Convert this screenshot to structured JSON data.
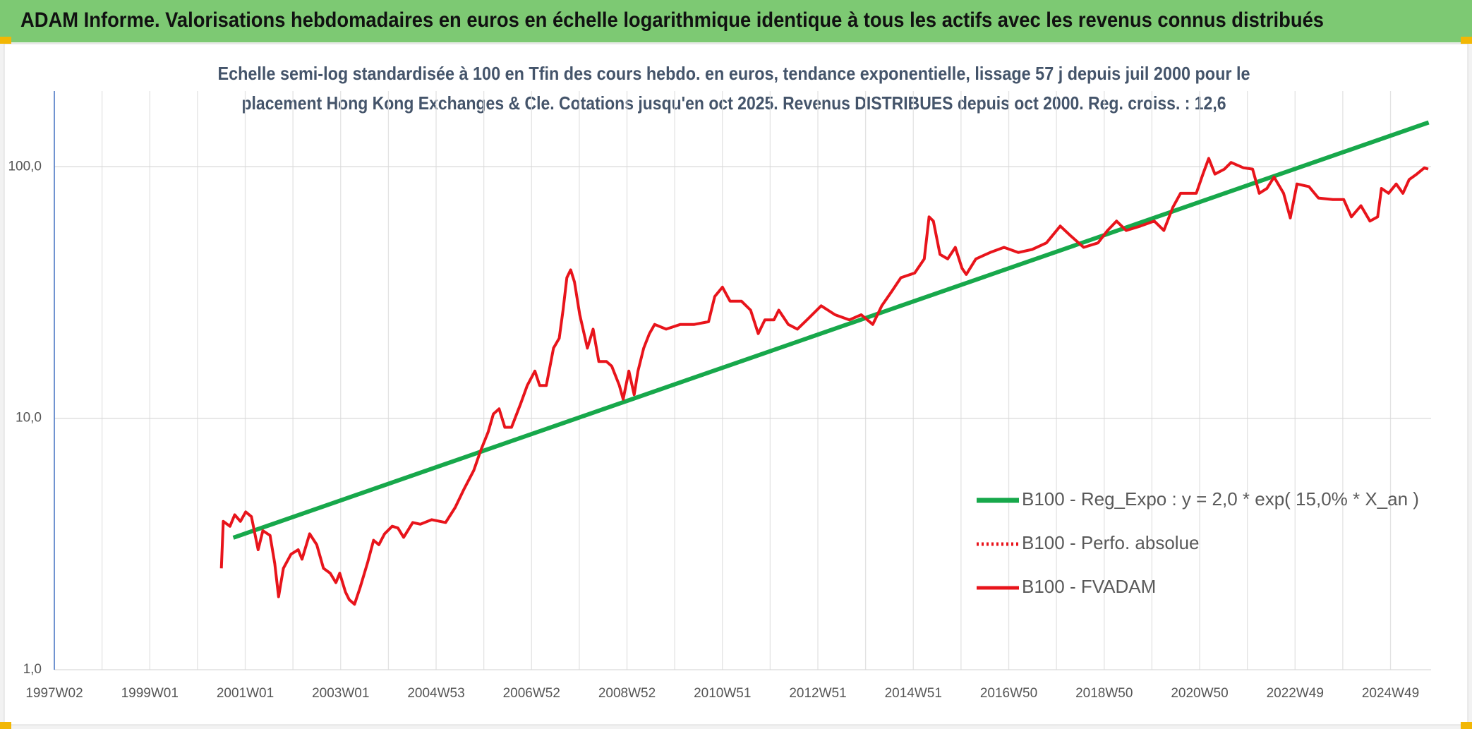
{
  "header": {
    "title": "ADAM Informe. Valorisations hebdomadaires en euros en échelle logarithmique identique à tous les actifs avec les revenus connus distribués"
  },
  "chart_data": {
    "type": "line",
    "subtitle": [
      "Echelle semi-log standardisée à 100 en Tfin des cours hebdo. en euros, tendance exponentielle, lissage 57 j depuis juil 2000 pour le",
      "placement Hong Kong Exchanges & Cle. Cotations jusqu'en oct 2025. Revenus DISTRIBUES depuis oct 2000. Reg. croiss. : 12,6"
    ],
    "log_y": true,
    "grid": true,
    "legend": "right",
    "xlim": [
      1997,
      2025.85
    ],
    "xticks": [
      {
        "value": 1997,
        "label": "1997W02"
      },
      {
        "value": 1999,
        "label": "1999W01"
      },
      {
        "value": 2001,
        "label": "2001W01"
      },
      {
        "value": 2003,
        "label": "2003W01"
      },
      {
        "value": 2005,
        "label": "2004W53"
      },
      {
        "value": 2007,
        "label": "2006W52"
      },
      {
        "value": 2009,
        "label": "2008W52"
      },
      {
        "value": 2011,
        "label": "2010W51"
      },
      {
        "value": 2013,
        "label": "2012W51"
      },
      {
        "value": 2015,
        "label": "2014W51"
      },
      {
        "value": 2017,
        "label": "2016W50"
      },
      {
        "value": 2019,
        "label": "2018W50"
      },
      {
        "value": 2021,
        "label": "2020W50"
      },
      {
        "value": 2023,
        "label": "2022W49"
      },
      {
        "value": 2025,
        "label": "2024W49"
      }
    ],
    "xminor": [
      1998,
      2000,
      2002,
      2004,
      2006,
      2008,
      2010,
      2012,
      2014,
      2016,
      2018,
      2020,
      2022,
      2024
    ],
    "ylim": [
      1,
      200
    ],
    "yticks": [
      {
        "value": 1,
        "label": "1,0"
      },
      {
        "value": 10,
        "label": "10,0"
      },
      {
        "value": 100,
        "label": "100,0"
      }
    ],
    "series": [
      {
        "name": "B100 - Reg_Expo : y = 2,0 * exp( 15,0% *  X_an )",
        "color": "#17a84b",
        "style": "solid",
        "width": 6,
        "x": [
          2000.75,
          2025.8
        ],
        "values": [
          3.35,
          150
        ]
      },
      {
        "name": "B100 - Perfo. absolue",
        "color": "#e8141b",
        "style": "dotted",
        "width": 4,
        "x": [],
        "values": []
      },
      {
        "name": "B100 - FVADAM",
        "color": "#e8141b",
        "style": "solid",
        "width": 4,
        "x": [
          2000.5,
          2000.54,
          2000.68,
          2000.78,
          2000.9,
          2001.01,
          2001.13,
          2001.27,
          2001.37,
          2001.52,
          2001.62,
          2001.7,
          2001.8,
          2001.96,
          2002.11,
          2002.19,
          2002.35,
          2002.5,
          2002.64,
          2002.78,
          2002.9,
          2002.98,
          2003.1,
          2003.18,
          2003.29,
          2003.41,
          2003.57,
          2003.69,
          2003.8,
          2003.92,
          2004.08,
          2004.2,
          2004.32,
          2004.51,
          2004.67,
          2004.91,
          2005.2,
          2005.4,
          2005.59,
          2005.79,
          2005.93,
          2006.09,
          2006.2,
          2006.32,
          2006.44,
          2006.58,
          2006.77,
          2006.91,
          2007.07,
          2007.17,
          2007.31,
          2007.46,
          2007.58,
          2007.66,
          2007.74,
          2007.82,
          2007.9,
          2008.01,
          2008.17,
          2008.29,
          2008.41,
          2008.57,
          2008.68,
          2008.84,
          2008.92,
          2009.04,
          2009.15,
          2009.23,
          2009.35,
          2009.47,
          2009.58,
          2009.82,
          2010.12,
          2010.41,
          2010.71,
          2010.84,
          2011.0,
          2011.16,
          2011.4,
          2011.59,
          2011.75,
          2011.89,
          2012.08,
          2012.18,
          2012.38,
          2012.57,
          2012.77,
          2013.07,
          2013.36,
          2013.66,
          2013.91,
          2014.15,
          2014.34,
          2014.54,
          2014.74,
          2015.03,
          2015.23,
          2015.33,
          2015.42,
          2015.56,
          2015.72,
          2015.88,
          2016.02,
          2016.11,
          2016.31,
          2016.61,
          2016.9,
          2017.2,
          2017.49,
          2017.79,
          2018.08,
          2018.28,
          2018.57,
          2018.87,
          2019.07,
          2019.26,
          2019.46,
          2019.76,
          2020.05,
          2020.25,
          2020.44,
          2020.6,
          2020.93,
          2021.07,
          2021.19,
          2021.32,
          2021.52,
          2021.66,
          2021.92,
          2022.11,
          2022.25,
          2022.41,
          2022.56,
          2022.76,
          2022.9,
          2023.04,
          2023.29,
          2023.49,
          2023.79,
          2024.02,
          2024.18,
          2024.38,
          2024.57,
          2024.73,
          2024.81,
          2024.96,
          2025.12,
          2025.26,
          2025.39,
          2025.55,
          2025.71,
          2025.79
        ],
        "values": [
          2.53,
          3.89,
          3.72,
          4.13,
          3.89,
          4.24,
          4.06,
          3.0,
          3.57,
          3.42,
          2.64,
          1.95,
          2.53,
          2.88,
          3.0,
          2.75,
          3.47,
          3.14,
          2.53,
          2.42,
          2.22,
          2.42,
          2.04,
          1.9,
          1.82,
          2.13,
          2.69,
          3.27,
          3.14,
          3.47,
          3.72,
          3.66,
          3.36,
          3.85,
          3.79,
          3.95,
          3.85,
          4.42,
          5.25,
          6.2,
          7.4,
          8.8,
          10.4,
          10.9,
          9.2,
          9.2,
          11.4,
          13.5,
          15.4,
          13.5,
          13.5,
          19.0,
          20.8,
          26.9,
          36.2,
          38.9,
          34.8,
          25.8,
          19.0,
          22.6,
          16.8,
          16.8,
          16.1,
          13.5,
          11.9,
          15.4,
          12.4,
          15.4,
          19.0,
          21.7,
          23.6,
          22.6,
          23.6,
          23.6,
          24.2,
          30.5,
          33.2,
          29.2,
          29.2,
          26.9,
          21.7,
          24.6,
          24.6,
          26.9,
          23.6,
          22.6,
          24.6,
          28.0,
          25.8,
          24.6,
          25.8,
          23.6,
          28.0,
          31.8,
          36.2,
          37.8,
          43.0,
          63.2,
          60.8,
          44.8,
          43.0,
          47.8,
          39.5,
          37.3,
          43.0,
          45.6,
          47.8,
          45.6,
          46.9,
          49.8,
          58.1,
          53.5,
          47.8,
          49.8,
          55.8,
          60.8,
          55.8,
          58.1,
          60.8,
          55.8,
          69.0,
          78.4,
          78.4,
          93.5,
          108,
          93.5,
          97.9,
          104,
          99.0,
          97.9,
          78.4,
          82.0,
          91.0,
          78.4,
          62.6,
          85.4,
          83.4,
          75.1,
          74.1,
          74.1,
          63.2,
          70.0,
          60.8,
          63.2,
          82.0,
          78.4,
          85.4,
          78.4,
          88.9,
          93.5,
          99.0,
          97.9
        ]
      }
    ]
  }
}
